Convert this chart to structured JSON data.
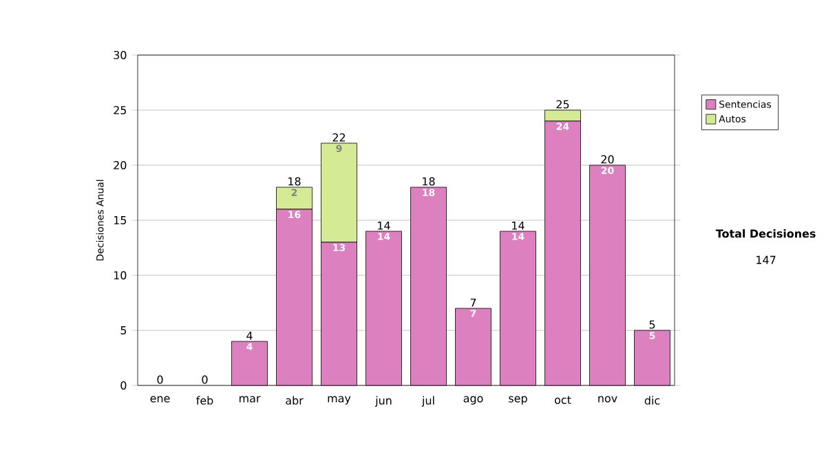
{
  "chart_data": {
    "type": "bar",
    "stacked": true,
    "ylabel": "Decisiones Anual",
    "categories": [
      "ene",
      "feb",
      "mar",
      "abr",
      "may",
      "jun",
      "jul",
      "ago",
      "sep",
      "oct",
      "nov",
      "dic"
    ],
    "series": [
      {
        "name": "Sentencias",
        "color": "#dd80c0",
        "values": [
          0,
          0,
          4,
          16,
          13,
          14,
          18,
          7,
          14,
          24,
          20,
          5
        ],
        "value_labels": [
          null,
          null,
          "4",
          "16",
          "13",
          "14",
          "18",
          "7",
          "14",
          "24",
          "20",
          "5"
        ]
      },
      {
        "name": "Autos",
        "color": "#d4ea94",
        "values": [
          0,
          0,
          0,
          2,
          9,
          0,
          0,
          0,
          0,
          1,
          0,
          0
        ],
        "value_labels": [
          null,
          null,
          null,
          "2",
          "9",
          null,
          null,
          null,
          null,
          null,
          null,
          null
        ]
      }
    ],
    "totals": [
      "0",
      "0",
      "4",
      "18",
      "22",
      "14",
      "18",
      "7",
      "14",
      "25",
      "20",
      "5"
    ],
    "ylim": [
      0,
      30
    ],
    "yticks": [
      0,
      5,
      10,
      15,
      20,
      25,
      30
    ],
    "grid": "y",
    "legend": "right",
    "annotations": [
      "Total Decisiones",
      "147"
    ]
  }
}
